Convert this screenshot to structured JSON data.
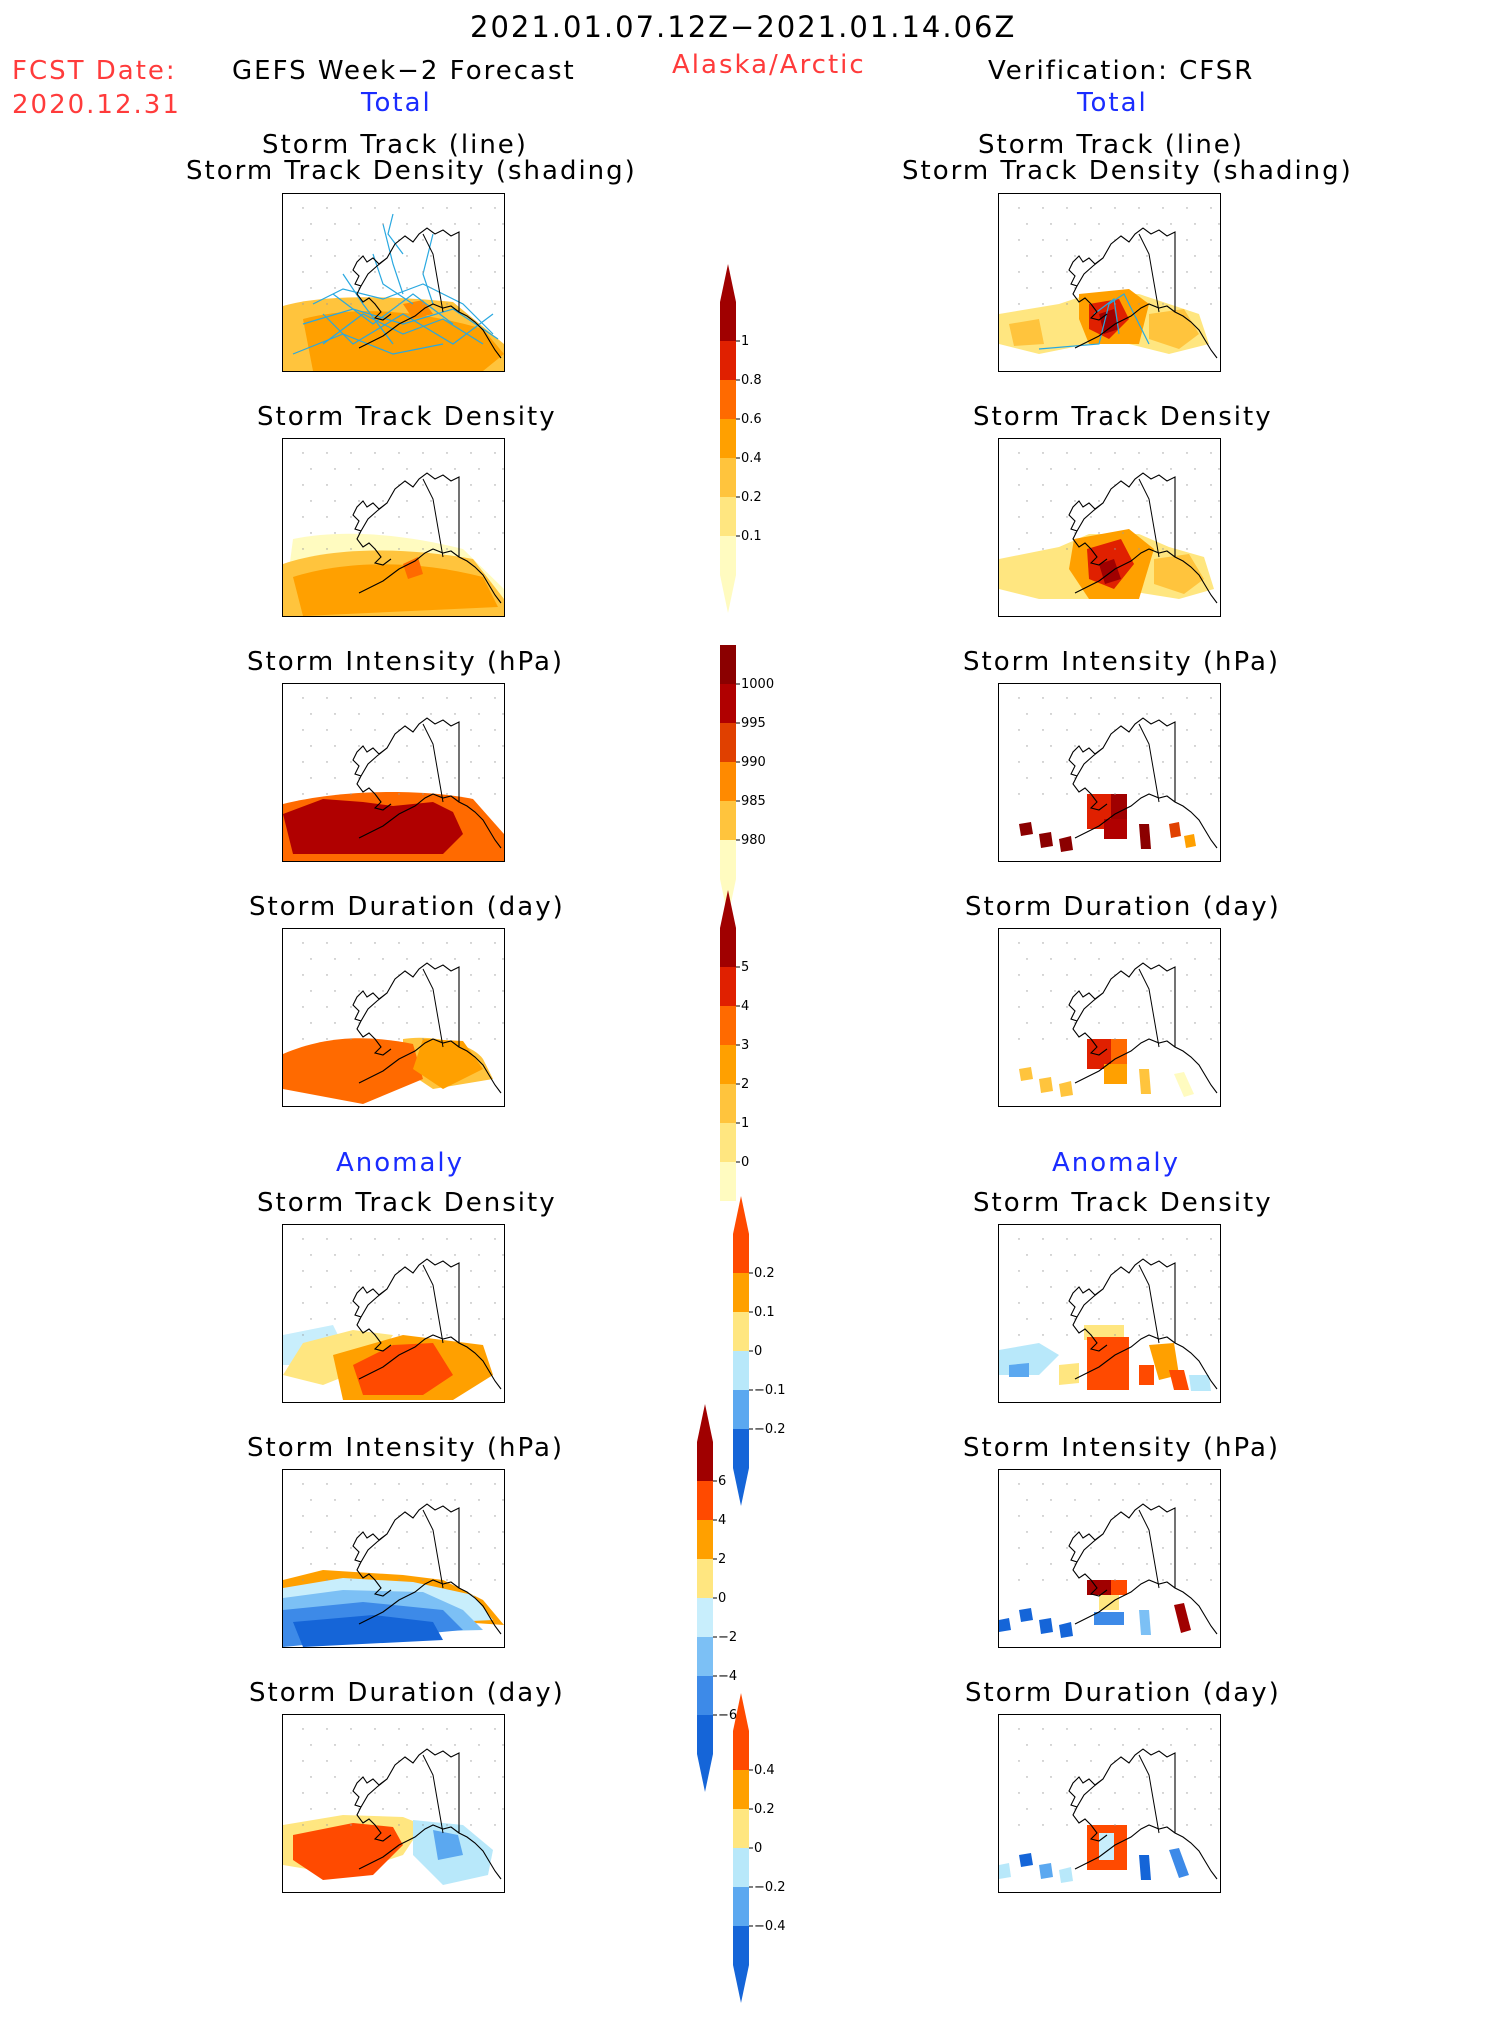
{
  "header": {
    "date_range": "2021.01.07.12Z−2021.01.14.06Z",
    "fcst_label": "FCST Date:",
    "fcst_date": "2020.12.31",
    "left_title": "GEFS Week−2 Forecast",
    "region": "Alaska/Arctic",
    "right_title": "Verification: CFSR",
    "left_section": "Total",
    "right_section": "Total"
  },
  "sections": {
    "anomaly_left": "Anomaly",
    "anomaly_right": "Anomaly"
  },
  "panels": {
    "track_line_1": "Storm Track (line)",
    "track_line_2": "Storm Track Density (shading)",
    "density": "Storm Track Density",
    "intensity": "Storm Intensity (hPa)",
    "duration": "Storm Duration (day)"
  },
  "colorbars": {
    "density_total": {
      "ticks": [
        "1",
        "0.8",
        "0.6",
        "0.4",
        "0.2",
        "0.1"
      ],
      "colors": [
        "#fffbc0",
        "#ffe680",
        "#ffc43d",
        "#ffa000",
        "#ff6a00",
        "#e02000",
        "#a00000"
      ]
    },
    "intensity_total": {
      "ticks": [
        "1000",
        "995",
        "990",
        "985",
        "980"
      ],
      "colors": [
        "#fffbc0",
        "#ffc43d",
        "#ff8a00",
        "#e04000",
        "#b00000",
        "#8b0000"
      ]
    },
    "duration_total": {
      "ticks": [
        "5",
        "4",
        "3",
        "2",
        "1",
        "0"
      ],
      "colors": [
        "#fffbc0",
        "#ffe680",
        "#ffc43d",
        "#ffa000",
        "#ff6a00",
        "#e02000",
        "#a00000"
      ]
    },
    "density_anom": {
      "ticks": [
        "0.2",
        "0.1",
        "0",
        "−0.1",
        "−0.2"
      ],
      "colors": [
        "#1565d8",
        "#5ba8f0",
        "#b8e8fa",
        "#ffe680",
        "#ffa000",
        "#ff4a00"
      ]
    },
    "intensity_anom": {
      "ticks": [
        "6",
        "4",
        "2",
        "0",
        "−2",
        "−4",
        "−6"
      ],
      "colors": [
        "#1565d8",
        "#3d8ae8",
        "#7cc0f5",
        "#c8eefc",
        "#ffe680",
        "#ffa000",
        "#ff4a00",
        "#a00000"
      ]
    },
    "duration_anom": {
      "ticks": [
        "0.4",
        "0.2",
        "0",
        "−0.2",
        "−0.4"
      ],
      "colors": [
        "#1565d8",
        "#5ba8f0",
        "#b8e8fa",
        "#ffe680",
        "#ffa000",
        "#ff4a00"
      ]
    }
  },
  "palette": {
    "light_blue_track": "#29a8e0",
    "grid_dot": "#9a9a9a"
  }
}
